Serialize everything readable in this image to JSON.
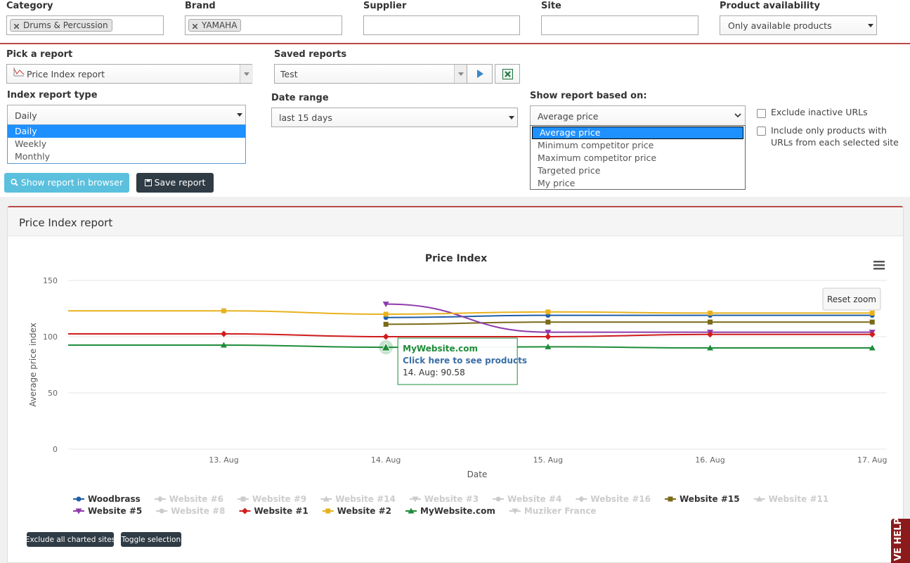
{
  "filters": [
    {
      "label": "Category",
      "value": "Drums & Percussion"
    },
    {
      "label": "Brand",
      "value": "YAMAHA"
    },
    {
      "label": "Supplier"
    },
    {
      "label": "Site"
    },
    {
      "label": "Product availability",
      "value": "Only available products"
    }
  ],
  "pick_report": {
    "label": "Pick a report",
    "value": "Price Index report"
  },
  "saved_reports": {
    "label": "Saved reports",
    "value": "Test"
  },
  "index_type": {
    "label": "Index report type",
    "value": "Daily",
    "options": [
      "Daily",
      "Weekly",
      "Monthly"
    ]
  },
  "date_range": {
    "label": "Date range",
    "value": "last 15 days"
  },
  "based_on": {
    "label": "Show report based on:",
    "value": "Average price",
    "options": [
      "Average price",
      "Minimum competitor price",
      "Maximum competitor price",
      "Targeted price",
      "My price"
    ]
  },
  "checkboxes": [
    "Exclude inactive URLs",
    "Include only products with URLs from each selected site"
  ],
  "buttons": [
    "Show report in browser",
    "Save report"
  ],
  "panel_title": "Price Index report",
  "chart_buttons": [
    "Reset zoom",
    "Exclude all charted sites",
    "Toggle selection"
  ],
  "live_help": "VE HELP",
  "chart_data": {
    "type": "line",
    "title": "Price Index",
    "xlabel": "Date",
    "ylabel": "Average price index",
    "categories": [
      null,
      "13. Aug",
      "14. Aug",
      "15. Aug",
      "16. Aug",
      "17. Aug"
    ],
    "xlim": [
      0.04,
      5.09
    ],
    "ylim": [
      0,
      150
    ],
    "yticks": [
      0,
      50,
      100,
      150
    ],
    "grid": true,
    "series": [
      {
        "name": "Woodbrass",
        "color": "#1f5fa8",
        "marker": "circle",
        "visible": true,
        "values": [
          null,
          null,
          117,
          119,
          119,
          119
        ]
      },
      {
        "name": "Website #6",
        "marker": "diamond",
        "visible": false
      },
      {
        "name": "Website #9",
        "marker": "square",
        "visible": false
      },
      {
        "name": "Website #14",
        "marker": "triangle",
        "visible": false
      },
      {
        "name": "Website #3",
        "marker": "triangle-down",
        "visible": false
      },
      {
        "name": "Website #4",
        "marker": "circle",
        "visible": false
      },
      {
        "name": "Website #16",
        "marker": "diamond",
        "visible": false
      },
      {
        "name": "Website #15",
        "color": "#7a6a18",
        "marker": "square",
        "visible": true,
        "values": [
          null,
          null,
          111,
          113,
          113,
          113
        ]
      },
      {
        "name": "Website #11",
        "marker": "triangle",
        "visible": false
      },
      {
        "name": "Website #5",
        "color": "#8e3bab",
        "marker": "triangle-down",
        "visible": true,
        "values": [
          null,
          null,
          129,
          104,
          104,
          104
        ]
      },
      {
        "name": "Website #8",
        "marker": "circle",
        "visible": false
      },
      {
        "name": "Website #1",
        "color": "#d01c1c",
        "marker": "diamond",
        "visible": true,
        "values": [
          102.5,
          102.5,
          100,
          100,
          102,
          102
        ]
      },
      {
        "name": "Website #2",
        "color": "#e8b21e",
        "marker": "square",
        "visible": true,
        "values": [
          123,
          123,
          120,
          122,
          121,
          121
        ]
      },
      {
        "name": "MyWebsite.com",
        "color": "#1e8c3a",
        "marker": "triangle",
        "visible": true,
        "values": [
          92.5,
          92.5,
          90.58,
          91,
          90,
          90
        ]
      },
      {
        "name": "Muziker France",
        "marker": "triangle-down",
        "visible": false
      }
    ],
    "tooltip": {
      "series": "MyWebsite.com",
      "link": "Click here to see products",
      "text": "14. Aug: 90.58"
    }
  }
}
